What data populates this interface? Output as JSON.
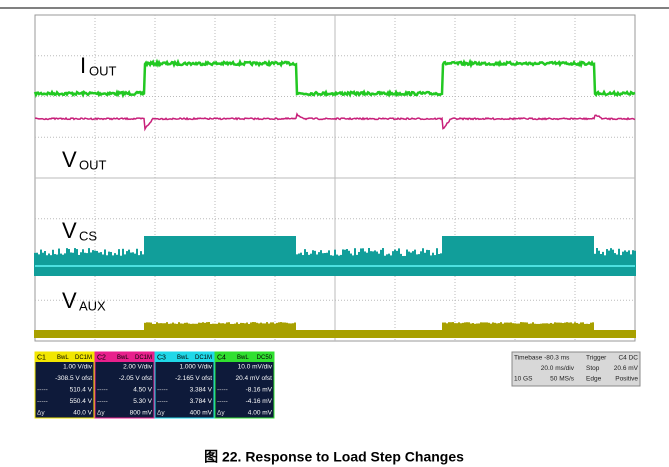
{
  "labels": [
    {
      "main": "I",
      "sub": "OUT"
    },
    {
      "main": "V",
      "sub": "OUT"
    },
    {
      "main": "V",
      "sub": "CS"
    },
    {
      "main": "V",
      "sub": "AUX"
    }
  ],
  "channels": [
    {
      "name": "C1",
      "bw": "BwL",
      "coupling": "DC1M",
      "color": "#f2e600",
      "rows": [
        {
          "value": "1.00 V/div"
        },
        {
          "value": "-308.5 V ofst"
        },
        {
          "label": "-----",
          "value": "510.4 V"
        },
        {
          "label": "-----",
          "value": "550.4 V"
        },
        {
          "label": "Δy",
          "value": "40.0 V"
        }
      ]
    },
    {
      "name": "C2",
      "bw": "BwL",
      "coupling": "DC1M",
      "color": "#e8208c",
      "rows": [
        {
          "value": "2.00 V/div"
        },
        {
          "value": "-2.05 V ofst"
        },
        {
          "label": "-----",
          "value": "4.50 V"
        },
        {
          "label": "-----",
          "value": "5.30 V"
        },
        {
          "label": "Δy",
          "value": "800 mV"
        }
      ]
    },
    {
      "name": "C3",
      "bw": "BwL",
      "coupling": "DC1M",
      "color": "#20d8e8",
      "rows": [
        {
          "value": "1.000 V/div"
        },
        {
          "value": "-2.165 V ofst"
        },
        {
          "label": "-----",
          "value": "3.384 V"
        },
        {
          "label": "-----",
          "value": "3.784 V"
        },
        {
          "label": "Δy",
          "value": "400 mV"
        }
      ]
    },
    {
      "name": "C4",
      "bw": "BwL",
      "coupling": "DC50",
      "color": "#30e030",
      "rows": [
        {
          "value": "10.0 mV/div"
        },
        {
          "value": "20.4 mV ofst"
        },
        {
          "label": "-----",
          "value": "-8.16 mV"
        },
        {
          "label": "-----",
          "value": "-4.16 mV"
        },
        {
          "label": "Δy",
          "value": "4.00 mV"
        }
      ]
    }
  ],
  "timebase": [
    [
      "Timebase -80.3 ms",
      "Trigger",
      "C4 DC"
    ],
    [
      "20.0 ms/div",
      "Stop",
      "20.6 mV"
    ],
    [
      "10 GS",
      "50 MS/s",
      "Edge",
      "Positive"
    ]
  ],
  "caption": "图 22. Response to Load Step Changes"
}
